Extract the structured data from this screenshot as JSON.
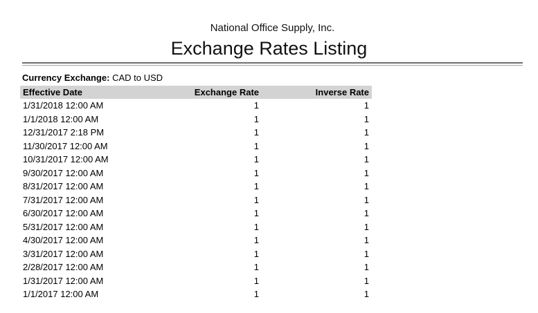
{
  "report": {
    "company": "National Office Supply, Inc.",
    "title": "Exchange Rates Listing",
    "filter_label": "Currency Exchange:",
    "filter_value": "CAD to USD"
  },
  "table": {
    "columns": [
      {
        "label": "Effective Date",
        "align": "left"
      },
      {
        "label": "Exchange Rate",
        "align": "right"
      },
      {
        "label": "Inverse Rate",
        "align": "right"
      }
    ],
    "rows": [
      {
        "effective_date": "1/31/2018 12:00 AM",
        "exchange_rate": "1",
        "inverse_rate": "1"
      },
      {
        "effective_date": "1/1/2018 12:00 AM",
        "exchange_rate": "1",
        "inverse_rate": "1"
      },
      {
        "effective_date": "12/31/2017 2:18 PM",
        "exchange_rate": "1",
        "inverse_rate": "1"
      },
      {
        "effective_date": "11/30/2017 12:00 AM",
        "exchange_rate": "1",
        "inverse_rate": "1"
      },
      {
        "effective_date": "10/31/2017 12:00 AM",
        "exchange_rate": "1",
        "inverse_rate": "1"
      },
      {
        "effective_date": "9/30/2017 12:00 AM",
        "exchange_rate": "1",
        "inverse_rate": "1"
      },
      {
        "effective_date": "8/31/2017 12:00 AM",
        "exchange_rate": "1",
        "inverse_rate": "1"
      },
      {
        "effective_date": "7/31/2017 12:00 AM",
        "exchange_rate": "1",
        "inverse_rate": "1"
      },
      {
        "effective_date": "6/30/2017 12:00 AM",
        "exchange_rate": "1",
        "inverse_rate": "1"
      },
      {
        "effective_date": "5/31/2017 12:00 AM",
        "exchange_rate": "1",
        "inverse_rate": "1"
      },
      {
        "effective_date": "4/30/2017 12:00 AM",
        "exchange_rate": "1",
        "inverse_rate": "1"
      },
      {
        "effective_date": "3/31/2017 12:00 AM",
        "exchange_rate": "1",
        "inverse_rate": "1"
      },
      {
        "effective_date": "2/28/2017 12:00 AM",
        "exchange_rate": "1",
        "inverse_rate": "1"
      },
      {
        "effective_date": "1/31/2017 12:00 AM",
        "exchange_rate": "1",
        "inverse_rate": "1"
      },
      {
        "effective_date": "1/1/2017 12:00 AM",
        "exchange_rate": "1",
        "inverse_rate": "1"
      }
    ]
  },
  "colors": {
    "header_bg": "#d3d3d3",
    "rule_dark": "#6e6e6e",
    "rule_light": "#a4a4a4",
    "text": "#000000",
    "page_bg": "#ffffff"
  }
}
